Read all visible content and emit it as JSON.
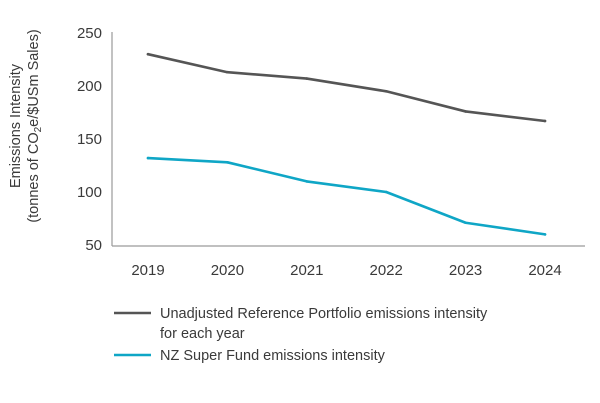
{
  "chart_data": {
    "type": "line",
    "title": "",
    "xlabel": "",
    "ylabel_line1": "Emissions Intensity",
    "ylabel_line2_prefix": "(tonnes of CO",
    "ylabel_line2_sub": "2",
    "ylabel_line2_suffix": "e/$USm Sales)",
    "categories": [
      "2019",
      "2020",
      "2021",
      "2022",
      "2023",
      "2024"
    ],
    "yticks": [
      250,
      200,
      150,
      100,
      50
    ],
    "ylim": [
      50,
      250
    ],
    "grid": false,
    "legend_position": "bottom",
    "series": [
      {
        "name_lines": [
          "Unadjusted Reference Portfolio emissions intensity",
          "for each year"
        ],
        "values": [
          230,
          213,
          207,
          195,
          176,
          167
        ],
        "color": "#555555"
      },
      {
        "name_lines": [
          "NZ Super Fund emissions intensity"
        ],
        "values": [
          132,
          128,
          110,
          100,
          71,
          60
        ],
        "color": "#0fa6c6"
      }
    ]
  }
}
